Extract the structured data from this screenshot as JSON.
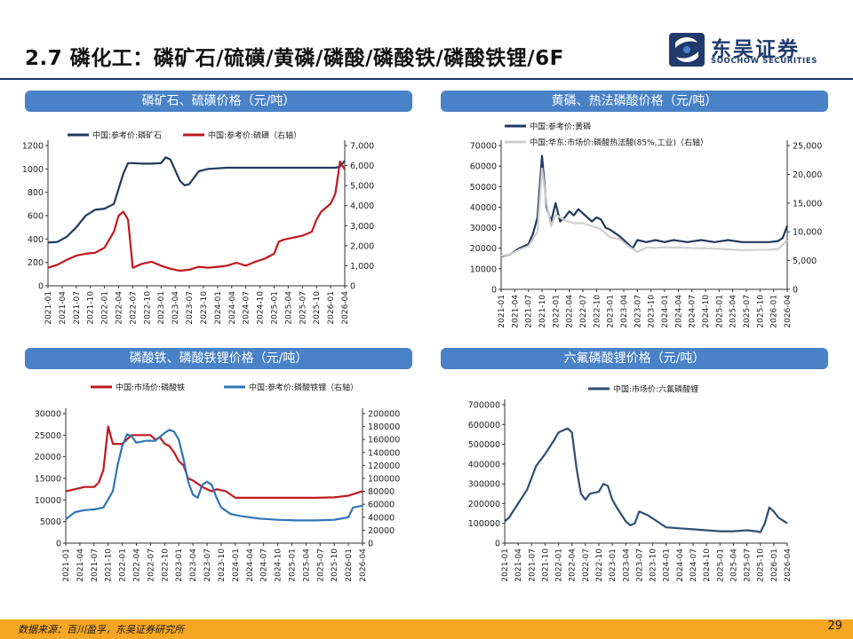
{
  "page": {
    "title": "2.7 磷化工：磷矿石/硫磺/黄磷/磷酸/磷酸铁/磷酸铁锂/6F",
    "logo_cn": "东吴证券",
    "logo_en": "SOOCHOW SECURITIES",
    "source": "数据来源：百川盈孚，东吴证券研究所",
    "page_number": "29",
    "colors": {
      "header_rule": "#1f3a6b",
      "panel_label": "#4a82c8",
      "footer": "#f5a623"
    }
  },
  "panels": [
    {
      "label": "磷矿石、硫磺价格（元/吨）"
    },
    {
      "label": "黄磷、热法磷酸价格（元/吨）"
    },
    {
      "label": "磷酸铁、磷酸铁锂价格（元/吨）"
    },
    {
      "label": "六氟磷酸锂价格（元/吨）"
    }
  ],
  "chart_data": [
    {
      "type": "line",
      "title": "磷矿石、硫磺价格（元/吨）",
      "x_start": "2021-01",
      "x_ticks": [
        "2021-01",
        "2021-04",
        "2021-07",
        "2021-10",
        "2022-01",
        "2022-04",
        "2022-07",
        "2022-10",
        "2023-01",
        "2023-04",
        "2023-07",
        "2023-10",
        "2024-01",
        "2024-04",
        "2024-07",
        "2024-10",
        "2025-01",
        "2025-04",
        "2025-07",
        "2025-10",
        "2026-01",
        "2026-04"
      ],
      "y_left": {
        "ticks": [
          "0",
          "200",
          "400",
          "600",
          "800",
          "1000",
          "1200"
        ],
        "range": [
          0,
          1200
        ]
      },
      "y_right": {
        "ticks": [
          "0",
          "1,000",
          "2,000",
          "3,000",
          "4,000",
          "5,000",
          "6,000",
          "7,000"
        ],
        "range": [
          0,
          7000
        ]
      },
      "legend_position": "top",
      "series": [
        {
          "name": "中国:参考价:磷矿石",
          "axis": "left",
          "color": "#1f3a5f",
          "x": [
            "2021-01",
            "2021-03",
            "2021-05",
            "2021-07",
            "2021-09",
            "2021-11",
            "2022-01",
            "2022-03",
            "2022-05",
            "2022-06",
            "2022-07",
            "2022-09",
            "2022-11",
            "2023-01",
            "2023-02",
            "2023-03",
            "2023-05",
            "2023-06",
            "2023-07",
            "2023-09",
            "2023-11",
            "2024-03",
            "2024-09",
            "2025-03",
            "2025-09",
            "2026-02",
            "2026-03",
            "2026-04"
          ],
          "values": [
            370,
            375,
            420,
            500,
            600,
            650,
            660,
            700,
            960,
            1050,
            1050,
            1045,
            1045,
            1050,
            1100,
            1080,
            900,
            860,
            870,
            980,
            1000,
            1010,
            1010,
            1010,
            1010,
            1010,
            1020,
            1070
          ]
        },
        {
          "name": "中国:参考价:硫磺（右轴）",
          "axis": "right",
          "color": "#c0191e",
          "x": [
            "2021-01",
            "2021-03",
            "2021-05",
            "2021-07",
            "2021-09",
            "2021-11",
            "2022-01",
            "2022-03",
            "2022-04",
            "2022-05",
            "2022-06",
            "2022-07",
            "2022-09",
            "2022-11",
            "2023-01",
            "2023-03",
            "2023-05",
            "2023-07",
            "2023-09",
            "2023-11",
            "2024-01",
            "2024-03",
            "2024-05",
            "2024-07",
            "2024-09",
            "2024-11",
            "2025-01",
            "2025-02",
            "2025-03",
            "2025-05",
            "2025-07",
            "2025-09",
            "2025-10",
            "2025-11",
            "2025-12",
            "2026-01",
            "2026-02",
            "2026-03",
            "2026-04"
          ],
          "values": [
            900,
            1050,
            1300,
            1500,
            1600,
            1650,
            1900,
            2700,
            3500,
            3700,
            3300,
            900,
            1100,
            1200,
            1000,
            850,
            750,
            800,
            950,
            900,
            950,
            1000,
            1150,
            1000,
            1200,
            1350,
            1600,
            2200,
            2300,
            2400,
            2500,
            2700,
            3300,
            3700,
            3900,
            4100,
            4600,
            6200,
            5800
          ]
        }
      ]
    },
    {
      "type": "line",
      "title": "黄磷、热法磷酸价格（元/吨）",
      "x_start": "2021-01",
      "x_ticks": [
        "2021-01",
        "2021-04",
        "2021-07",
        "2021-10",
        "2022-01",
        "2022-04",
        "2022-07",
        "2022-10",
        "2023-01",
        "2023-04",
        "2023-07",
        "2023-10",
        "2024-01",
        "2024-04",
        "2024-07",
        "2024-10",
        "2025-01",
        "2025-04",
        "2025-07",
        "2025-10",
        "2026-01",
        "2026-04"
      ],
      "y_left": {
        "ticks": [
          "0",
          "10000",
          "20000",
          "30000",
          "40000",
          "50000",
          "60000",
          "70000"
        ],
        "range": [
          0,
          70000
        ]
      },
      "y_right": {
        "ticks": [
          "0",
          "5,000",
          "10,000",
          "15,000",
          "20,000",
          "25,000"
        ],
        "range": [
          0,
          25000
        ]
      },
      "legend_position": "top",
      "series": [
        {
          "name": "中国:参考价:黄磷",
          "axis": "left",
          "color": "#1f3a5f",
          "x": [
            "2021-01",
            "2021-03",
            "2021-05",
            "2021-07",
            "2021-08",
            "2021-09",
            "2021-10",
            "2021-11",
            "2021-12",
            "2022-01",
            "2022-02",
            "2022-03",
            "2022-04",
            "2022-05",
            "2022-06",
            "2022-07",
            "2022-08",
            "2022-09",
            "2022-10",
            "2022-11",
            "2022-12",
            "2023-01",
            "2023-03",
            "2023-05",
            "2023-06",
            "2023-07",
            "2023-09",
            "2023-11",
            "2024-01",
            "2024-03",
            "2024-06",
            "2024-09",
            "2024-12",
            "2025-03",
            "2025-06",
            "2025-09",
            "2025-12",
            "2026-02",
            "2026-03",
            "2026-04"
          ],
          "values": [
            16000,
            17000,
            20000,
            22000,
            27000,
            35000,
            65000,
            40000,
            33000,
            42000,
            33000,
            35000,
            38000,
            36000,
            39000,
            37000,
            35000,
            33000,
            35000,
            34000,
            30000,
            29000,
            26000,
            22000,
            20000,
            24000,
            23000,
            24000,
            23000,
            24000,
            23000,
            24000,
            23000,
            24000,
            23000,
            23000,
            23000,
            23500,
            25000,
            31000
          ]
        },
        {
          "name": "中国:华东:市场价:磷酸热法酸(85%,工业)（右轴）",
          "axis": "right",
          "color": "#cfcfcf",
          "x": [
            "2021-01",
            "2021-03",
            "2021-05",
            "2021-07",
            "2021-09",
            "2021-10",
            "2021-11",
            "2021-12",
            "2022-01",
            "2022-03",
            "2022-05",
            "2022-07",
            "2022-09",
            "2022-11",
            "2023-01",
            "2023-03",
            "2023-05",
            "2023-07",
            "2023-09",
            "2023-11",
            "2024-01",
            "2024-06",
            "2024-12",
            "2025-06",
            "2025-12",
            "2026-02",
            "2026-04"
          ],
          "values": [
            5800,
            6100,
            6900,
            7500,
            10000,
            21000,
            15000,
            11000,
            13000,
            12000,
            11500,
            11500,
            11000,
            10500,
            9000,
            8800,
            7500,
            6500,
            7300,
            7200,
            7300,
            7200,
            7100,
            6800,
            6900,
            7000,
            8500
          ]
        }
      ]
    },
    {
      "type": "line",
      "title": "磷酸铁、磷酸铁锂价格（元/吨）",
      "x_start": "2021-01",
      "x_ticks": [
        "2021-01",
        "2021-04",
        "2021-07",
        "2021-10",
        "2022-01",
        "2022-04",
        "2022-07",
        "2022-10",
        "2023-01",
        "2023-04",
        "2023-07",
        "2023-10",
        "2024-01",
        "2024-04",
        "2024-07",
        "2024-10",
        "2025-01",
        "2025-04",
        "2025-07",
        "2025-10",
        "2026-01",
        "2026-04"
      ],
      "y_left": {
        "ticks": [
          "0",
          "5000",
          "10000",
          "15000",
          "20000",
          "25000",
          "30000"
        ],
        "range": [
          0,
          30000
        ]
      },
      "y_right": {
        "ticks": [
          "0",
          "20000",
          "40000",
          "60000",
          "80000",
          "100000",
          "120000",
          "140000",
          "160000",
          "180000",
          "200000"
        ],
        "range": [
          0,
          200000
        ]
      },
      "legend_position": "top",
      "series": [
        {
          "name": "中国:市场价:磷酸铁",
          "axis": "left",
          "color": "#c0191e",
          "x": [
            "2021-01",
            "2021-03",
            "2021-05",
            "2021-07",
            "2021-08",
            "2021-09",
            "2021-10",
            "2021-11",
            "2021-12",
            "2022-01",
            "2022-02",
            "2022-03",
            "2022-05",
            "2022-07",
            "2022-08",
            "2022-09",
            "2022-10",
            "2022-11",
            "2022-12",
            "2023-01",
            "2023-02",
            "2023-03",
            "2023-04",
            "2023-06",
            "2023-08",
            "2023-09",
            "2023-11",
            "2024-01",
            "2024-06",
            "2024-12",
            "2025-06",
            "2025-10",
            "2026-01",
            "2026-03",
            "2026-04"
          ],
          "values": [
            12000,
            12500,
            13000,
            13000,
            14000,
            17000,
            27000,
            23000,
            23000,
            23000,
            24000,
            25000,
            25000,
            25000,
            24000,
            24500,
            23000,
            22500,
            21000,
            19000,
            18000,
            15000,
            14500,
            13000,
            12000,
            12500,
            12000,
            10500,
            10500,
            10500,
            10500,
            10600,
            11000,
            11700,
            12000
          ]
        },
        {
          "name": "中国:参考价:磷酸铁锂（右轴）",
          "axis": "right",
          "color": "#2e75b6",
          "x": [
            "2021-01",
            "2021-03",
            "2021-05",
            "2021-07",
            "2021-09",
            "2021-11",
            "2021-12",
            "2022-01",
            "2022-02",
            "2022-03",
            "2022-04",
            "2022-06",
            "2022-08",
            "2022-10",
            "2022-11",
            "2022-12",
            "2023-01",
            "2023-02",
            "2023-03",
            "2023-04",
            "2023-05",
            "2023-06",
            "2023-07",
            "2023-08",
            "2023-09",
            "2023-10",
            "2023-12",
            "2024-02",
            "2024-06",
            "2024-10",
            "2025-02",
            "2025-06",
            "2025-10",
            "2026-01",
            "2026-02",
            "2026-04"
          ],
          "values": [
            37000,
            48000,
            51000,
            52000,
            55000,
            80000,
            120000,
            150000,
            168000,
            165000,
            155000,
            158000,
            158000,
            170000,
            175000,
            172000,
            160000,
            130000,
            95000,
            75000,
            70000,
            90000,
            95000,
            90000,
            70000,
            55000,
            45000,
            42000,
            38000,
            36000,
            35000,
            35000,
            36000,
            40000,
            55000,
            58000
          ]
        }
      ]
    },
    {
      "type": "line",
      "title": "六氟磷酸锂价格（元/吨）",
      "x_start": "2021-01",
      "x_ticks": [
        "2021-01",
        "2021-04",
        "2021-07",
        "2021-10",
        "2022-01",
        "2022-04",
        "2022-07",
        "2022-10",
        "2023-01",
        "2023-04",
        "2023-07",
        "2023-10",
        "2024-01",
        "2024-04",
        "2024-07",
        "2024-10",
        "2025-01",
        "2025-04",
        "2025-07",
        "2025-10",
        "2026-01",
        "2026-04"
      ],
      "y_left": {
        "ticks": [
          "0",
          "100000",
          "200000",
          "300000",
          "400000",
          "500000",
          "600000",
          "700000"
        ],
        "range": [
          0,
          700000
        ]
      },
      "legend_position": "top",
      "series": [
        {
          "name": "中国:市场价:六氟磷酸锂",
          "axis": "left",
          "color": "#2f4f73",
          "x": [
            "2021-01",
            "2021-02",
            "2021-04",
            "2021-06",
            "2021-08",
            "2021-10",
            "2021-12",
            "2022-01",
            "2022-02",
            "2022-03",
            "2022-04",
            "2022-05",
            "2022-06",
            "2022-07",
            "2022-08",
            "2022-10",
            "2022-11",
            "2022-12",
            "2023-01",
            "2023-02",
            "2023-04",
            "2023-05",
            "2023-06",
            "2023-07",
            "2023-09",
            "2023-11",
            "2024-01",
            "2024-04",
            "2024-07",
            "2024-10",
            "2025-01",
            "2025-04",
            "2025-07",
            "2025-09",
            "2025-10",
            "2025-11",
            "2025-12",
            "2026-01",
            "2026-02",
            "2026-04"
          ],
          "values": [
            110000,
            130000,
            200000,
            270000,
            390000,
            450000,
            520000,
            560000,
            570000,
            580000,
            560000,
            380000,
            250000,
            220000,
            250000,
            260000,
            300000,
            290000,
            220000,
            180000,
            110000,
            90000,
            100000,
            160000,
            140000,
            110000,
            80000,
            75000,
            70000,
            65000,
            60000,
            60000,
            65000,
            60000,
            55000,
            100000,
            180000,
            160000,
            130000,
            100000
          ]
        }
      ]
    }
  ]
}
